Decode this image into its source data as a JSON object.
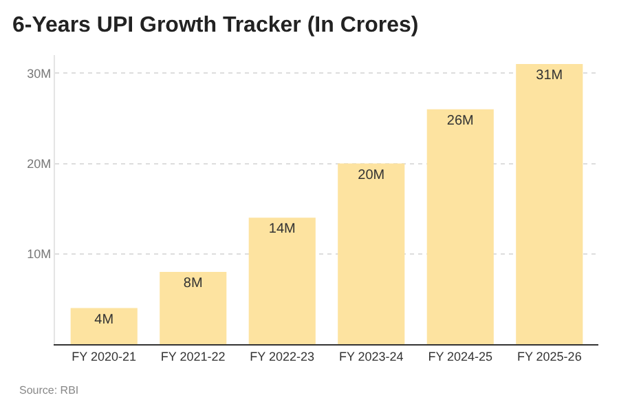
{
  "chart_data": {
    "type": "bar",
    "title": "6-Years UPI Growth Tracker (In Crores)",
    "categories": [
      "FY 2020-21",
      "FY 2021-22",
      "FY 2022-23",
      "FY 2023-24",
      "FY 2024-25",
      "FY 2025-26"
    ],
    "values": [
      4,
      8,
      14,
      20,
      26,
      31
    ],
    "value_labels": [
      "4M",
      "8M",
      "14M",
      "20M",
      "26M",
      "31M"
    ],
    "color": "#fde3a0",
    "ylim": [
      0,
      32
    ],
    "yticks": [
      {
        "value": 10,
        "label": "10M"
      },
      {
        "value": 20,
        "label": "20M"
      },
      {
        "value": 30,
        "label": "30M"
      }
    ],
    "grid": "y",
    "annotations": [
      "Source: RBI"
    ]
  }
}
